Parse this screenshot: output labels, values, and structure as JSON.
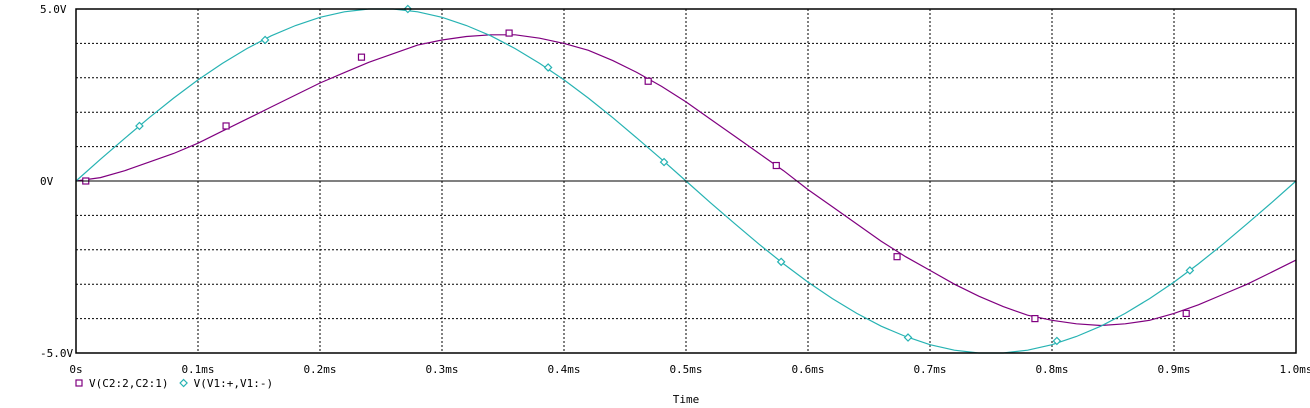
{
  "chart_data": {
    "type": "line",
    "xlabel": "Time",
    "ylabel": "",
    "title": "",
    "xlim": [
      0,
      1.0
    ],
    "ylim": [
      -5.0,
      5.0
    ],
    "x_ticks": [
      {
        "value": 0.0,
        "label": "0s"
      },
      {
        "value": 0.1,
        "label": "0.1ms"
      },
      {
        "value": 0.2,
        "label": "0.2ms"
      },
      {
        "value": 0.3,
        "label": "0.3ms"
      },
      {
        "value": 0.4,
        "label": "0.4ms"
      },
      {
        "value": 0.5,
        "label": "0.5ms"
      },
      {
        "value": 0.6,
        "label": "0.6ms"
      },
      {
        "value": 0.7,
        "label": "0.7ms"
      },
      {
        "value": 0.8,
        "label": "0.8ms"
      },
      {
        "value": 0.9,
        "label": "0.9ms"
      },
      {
        "value": 1.0,
        "label": "1.0ms"
      }
    ],
    "y_ticks": [
      {
        "value": 5.0,
        "label": "5.0V"
      },
      {
        "value": 0.0,
        "label": "0V"
      },
      {
        "value": -5.0,
        "label": "-5.0V"
      }
    ],
    "grid": true,
    "legend_position": "bottom-left",
    "series": [
      {
        "name": "V(C2:2,C2:1)",
        "color": "#800080",
        "marker": "square",
        "x": [
          0.0,
          0.02,
          0.04,
          0.06,
          0.08,
          0.1,
          0.12,
          0.14,
          0.16,
          0.18,
          0.2,
          0.22,
          0.24,
          0.26,
          0.28,
          0.3,
          0.32,
          0.34,
          0.36,
          0.38,
          0.4,
          0.42,
          0.44,
          0.46,
          0.48,
          0.5,
          0.52,
          0.54,
          0.56,
          0.58,
          0.6,
          0.62,
          0.64,
          0.66,
          0.68,
          0.7,
          0.72,
          0.74,
          0.76,
          0.78,
          0.8,
          0.82,
          0.84,
          0.86,
          0.88,
          0.9,
          0.92,
          0.94,
          0.96,
          0.98,
          1.0
        ],
        "values": [
          0.0,
          0.1,
          0.3,
          0.55,
          0.8,
          1.1,
          1.45,
          1.8,
          2.15,
          2.5,
          2.85,
          3.15,
          3.45,
          3.7,
          3.95,
          4.1,
          4.2,
          4.25,
          4.25,
          4.15,
          4.0,
          3.8,
          3.5,
          3.15,
          2.75,
          2.3,
          1.8,
          1.3,
          0.8,
          0.3,
          -0.25,
          -0.75,
          -1.25,
          -1.75,
          -2.2,
          -2.6,
          -3.0,
          -3.35,
          -3.65,
          -3.9,
          -4.05,
          -4.15,
          -4.2,
          -4.15,
          -4.05,
          -3.85,
          -3.6,
          -3.3,
          -3.0,
          -2.65,
          -2.3
        ],
        "marker_points": [
          {
            "x": 0.008,
            "y": 0.0
          },
          {
            "x": 0.123,
            "y": 1.6
          },
          {
            "x": 0.234,
            "y": 3.6
          },
          {
            "x": 0.355,
            "y": 4.3
          },
          {
            "x": 0.469,
            "y": 2.9
          },
          {
            "x": 0.574,
            "y": 0.45
          },
          {
            "x": 0.673,
            "y": -2.2
          },
          {
            "x": 0.786,
            "y": -4.0
          },
          {
            "x": 0.91,
            "y": -3.85
          }
        ]
      },
      {
        "name": "V(V1:+,V1:-)",
        "color": "#27b3b3",
        "marker": "diamond",
        "x": [
          0.0,
          0.02,
          0.04,
          0.06,
          0.08,
          0.1,
          0.12,
          0.14,
          0.16,
          0.18,
          0.2,
          0.22,
          0.24,
          0.26,
          0.28,
          0.3,
          0.32,
          0.34,
          0.36,
          0.38,
          0.4,
          0.42,
          0.44,
          0.46,
          0.48,
          0.5,
          0.52,
          0.54,
          0.56,
          0.58,
          0.6,
          0.62,
          0.64,
          0.66,
          0.68,
          0.7,
          0.72,
          0.74,
          0.76,
          0.78,
          0.8,
          0.82,
          0.84,
          0.86,
          0.88,
          0.9,
          0.92,
          0.94,
          0.96,
          0.98,
          1.0
        ],
        "values": [
          0.0,
          0.63,
          1.24,
          1.84,
          2.41,
          2.94,
          3.42,
          3.85,
          4.22,
          4.52,
          4.76,
          4.92,
          5.0,
          5.0,
          4.92,
          4.76,
          4.52,
          4.22,
          3.85,
          3.42,
          2.94,
          2.41,
          1.84,
          1.24,
          0.63,
          0.0,
          -0.63,
          -1.24,
          -1.84,
          -2.41,
          -2.94,
          -3.42,
          -3.85,
          -4.22,
          -4.52,
          -4.76,
          -4.92,
          -5.0,
          -5.0,
          -4.92,
          -4.76,
          -4.52,
          -4.22,
          -3.85,
          -3.42,
          -2.94,
          -2.41,
          -1.84,
          -1.24,
          -0.63,
          0.0
        ],
        "marker_points": [
          {
            "x": 0.052,
            "y": 1.6
          },
          {
            "x": 0.155,
            "y": 4.1
          },
          {
            "x": 0.272,
            "y": 5.0
          },
          {
            "x": 0.387,
            "y": 3.3
          },
          {
            "x": 0.482,
            "y": 0.55
          },
          {
            "x": 0.578,
            "y": -2.35
          },
          {
            "x": 0.682,
            "y": -4.55
          },
          {
            "x": 0.804,
            "y": -4.65
          },
          {
            "x": 0.913,
            "y": -2.6
          }
        ]
      }
    ]
  }
}
